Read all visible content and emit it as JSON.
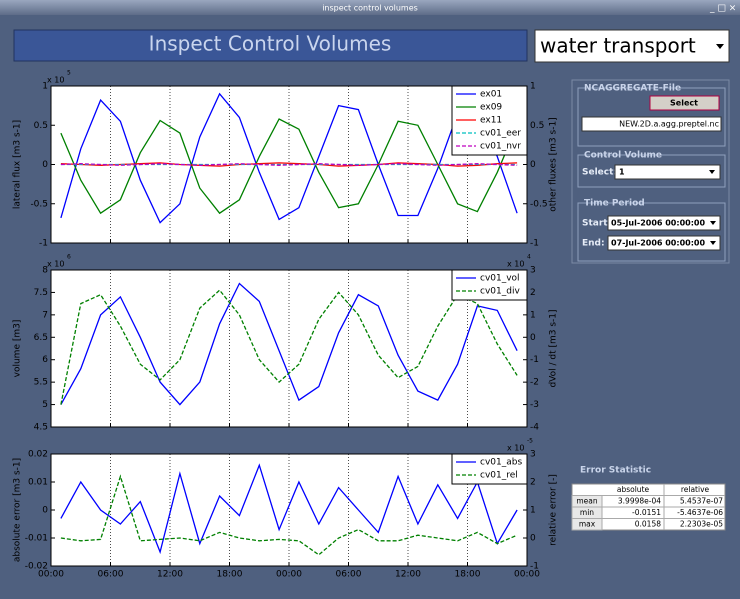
{
  "window_title": "inspect control volumes",
  "header": {
    "title": "Inspect Control Volumes",
    "mode": "water transport"
  },
  "file_group": {
    "title": "NCAGGREGATE-File",
    "button": "Select",
    "filename": "NEW.2D.a.agg.preptel.nc"
  },
  "control_volume": {
    "title": "Control Volume",
    "label": "Select:",
    "value": "1"
  },
  "time_period": {
    "title": "Time Period",
    "start_label": "Start:",
    "start": "05-Jul-2006 00:00:00",
    "end_label": "End:",
    "end": "07-Jul-2006 00:00:00"
  },
  "error_statistic": {
    "title": "Error Statistic",
    "columns": [
      "absolute",
      "relative"
    ],
    "rows": [
      {
        "label": "mean",
        "values": [
          "3.9998e-04",
          "5.4537e-07"
        ]
      },
      {
        "label": "min",
        "values": [
          "-0.0151",
          "-5.4637e-06"
        ]
      },
      {
        "label": "max",
        "values": [
          "0.0158",
          "2.2303e-05"
        ]
      }
    ]
  },
  "chart_data": [
    {
      "type": "line",
      "ylabel": "lateral flux  [m3 s-1]",
      "y2label": "other fluxes [m3 s-1]",
      "y_scale": {
        "base": "x 10",
        "exponent": "5"
      },
      "x": [
        1,
        3,
        5,
        7,
        9,
        11,
        13,
        15,
        17,
        19,
        21,
        23,
        25,
        27,
        29,
        31,
        33,
        35,
        37,
        39,
        41,
        43,
        45,
        47
      ],
      "xlim": [
        0,
        48
      ],
      "xticks": [
        0,
        6,
        12,
        18,
        24,
        30,
        36,
        42,
        48
      ],
      "ylim": [
        -1,
        1
      ],
      "yticks": [
        -1,
        -0.5,
        0,
        0.5,
        1
      ],
      "y2lim": [
        -1,
        1
      ],
      "y2ticks": [
        -1,
        -0.5,
        0,
        0.5,
        1
      ],
      "grid": true,
      "legend": "upper right",
      "series": [
        {
          "name": "ex01",
          "color": "#0000ff",
          "linestyle": "solid",
          "values": [
            -0.68,
            0.2,
            0.82,
            0.55,
            -0.2,
            -0.74,
            -0.5,
            0.35,
            0.9,
            0.6,
            -0.1,
            -0.7,
            -0.55,
            0.1,
            0.75,
            0.7,
            0.0,
            -0.65,
            -0.65,
            -0.05,
            0.65,
            0.72,
            0.1,
            -0.62
          ]
        },
        {
          "name": "ex09",
          "color": "#008000",
          "linestyle": "solid",
          "values": [
            0.4,
            -0.2,
            -0.62,
            -0.45,
            0.15,
            0.56,
            0.4,
            -0.3,
            -0.62,
            -0.45,
            0.1,
            0.58,
            0.45,
            -0.1,
            -0.55,
            -0.5,
            0.0,
            0.55,
            0.5,
            0.0,
            -0.5,
            -0.6,
            -0.1,
            0.5
          ]
        },
        {
          "name": "ex11",
          "color": "#ff0000",
          "linestyle": "solid",
          "axis": "y2",
          "values": [
            0.01,
            0.0,
            -0.01,
            0.0,
            0.01,
            0.02,
            0.0,
            -0.01,
            -0.02,
            0.0,
            0.01,
            0.02,
            0.01,
            0.0,
            -0.02,
            -0.01,
            0.0,
            0.02,
            0.01,
            0.0,
            -0.02,
            -0.01,
            0.01,
            0.02
          ]
        },
        {
          "name": "cv01_eer",
          "color": "#00bfbf",
          "linestyle": "dashed",
          "axis": "y2",
          "values": [
            0,
            0,
            0,
            0,
            0,
            0,
            0,
            0,
            0,
            0,
            0,
            0,
            0,
            0,
            0,
            0,
            0,
            0,
            0,
            0,
            0,
            0,
            0,
            0
          ]
        },
        {
          "name": "cv01_nvr",
          "color": "#bf00bf",
          "linestyle": "dashed",
          "axis": "y2",
          "values": [
            0.0,
            0.01,
            0.0,
            -0.01,
            0.0,
            0.01,
            0.0,
            -0.01,
            0.0,
            0.01,
            0.0,
            -0.01,
            0.0,
            0.01,
            0.0,
            -0.01,
            0.0,
            0.01,
            0.0,
            -0.01,
            0.0,
            0.01,
            0.0,
            -0.01
          ]
        }
      ]
    },
    {
      "type": "line",
      "ylabel": "volume [m3]",
      "y2label": "dVol / dt  [m3 s-1]",
      "y_scale": {
        "base": "x 10",
        "exponent": "6"
      },
      "y2_scale": {
        "base": "x 10",
        "exponent": "4"
      },
      "x": [
        1,
        3,
        5,
        7,
        9,
        11,
        13,
        15,
        17,
        19,
        21,
        23,
        25,
        27,
        29,
        31,
        33,
        35,
        37,
        39,
        41,
        43,
        45,
        47
      ],
      "xlim": [
        0,
        48
      ],
      "xticks": [
        0,
        6,
        12,
        18,
        24,
        30,
        36,
        42,
        48
      ],
      "ylim": [
        4.5,
        8
      ],
      "yticks": [
        4.5,
        5,
        5.5,
        6,
        6.5,
        7,
        7.5,
        8
      ],
      "y2lim": [
        -4,
        3
      ],
      "y2ticks": [
        -4,
        -3,
        -2,
        -1,
        0,
        1,
        2,
        3
      ],
      "grid": true,
      "legend": "upper right",
      "series": [
        {
          "name": "cv01_vol",
          "color": "#0000ff",
          "linestyle": "solid",
          "values": [
            5.0,
            5.8,
            7.0,
            7.4,
            6.5,
            5.5,
            5.0,
            5.5,
            6.8,
            7.7,
            7.3,
            6.2,
            5.1,
            5.4,
            6.6,
            7.45,
            7.2,
            6.1,
            5.3,
            5.1,
            5.9,
            7.2,
            7.1,
            6.2
          ]
        },
        {
          "name": "cv01_div",
          "color": "#008000",
          "linestyle": "dashed",
          "axis": "y2",
          "values": [
            -3.0,
            1.5,
            1.9,
            0.5,
            -1.2,
            -1.9,
            -1.0,
            1.3,
            2.1,
            1.0,
            -1.0,
            -2.0,
            -1.2,
            0.8,
            2.0,
            1.0,
            -0.8,
            -1.8,
            -1.3,
            0.5,
            1.9,
            1.5,
            -0.3,
            -1.7
          ]
        }
      ]
    },
    {
      "type": "line",
      "ylabel": "absolute error [m3 s-1]",
      "y2label": "relative error  [-]",
      "y2_scale": {
        "base": "x 10",
        "exponent": "-5"
      },
      "x": [
        1,
        3,
        5,
        7,
        9,
        11,
        13,
        15,
        17,
        19,
        21,
        23,
        25,
        27,
        29,
        31,
        33,
        35,
        37,
        39,
        41,
        43,
        45,
        47
      ],
      "xlim": [
        0,
        48
      ],
      "xticks": [
        {
          "value": 0,
          "label": "00:00"
        },
        {
          "value": 6,
          "label": "06:00"
        },
        {
          "value": 12,
          "label": "12:00"
        },
        {
          "value": 18,
          "label": "18:00"
        },
        {
          "value": 24,
          "label": "00:00"
        },
        {
          "value": 30,
          "label": "06:00"
        },
        {
          "value": 36,
          "label": "12:00"
        },
        {
          "value": 42,
          "label": "18:00"
        },
        {
          "value": 48,
          "label": "00:00"
        }
      ],
      "ylim": [
        -0.02,
        0.02
      ],
      "yticks": [
        -0.02,
        -0.01,
        0,
        0.01,
        0.02
      ],
      "y2lim": [
        -1,
        3
      ],
      "y2ticks": [
        -1,
        0,
        1,
        2,
        3
      ],
      "grid": true,
      "legend": "upper right",
      "series": [
        {
          "name": "cv01_abs",
          "color": "#0000ff",
          "linestyle": "solid",
          "values": [
            -0.003,
            0.01,
            0.0,
            -0.005,
            0.003,
            -0.015,
            0.013,
            -0.012,
            0.005,
            -0.002,
            0.016,
            -0.007,
            0.01,
            -0.005,
            0.008,
            0.0,
            -0.008,
            0.012,
            -0.005,
            0.009,
            -0.003,
            0.01,
            -0.012,
            0.0
          ]
        },
        {
          "name": "cv01_rel",
          "color": "#008000",
          "linestyle": "dashed",
          "axis": "y2",
          "values": [
            0.0,
            -0.1,
            -0.05,
            2.2,
            -0.1,
            -0.05,
            0.0,
            -0.1,
            0.2,
            0.0,
            -0.1,
            -0.05,
            -0.1,
            -0.6,
            0.0,
            0.3,
            -0.1,
            -0.1,
            0.1,
            0.0,
            -0.1,
            0.2,
            -0.2,
            0.1
          ]
        }
      ]
    }
  ]
}
